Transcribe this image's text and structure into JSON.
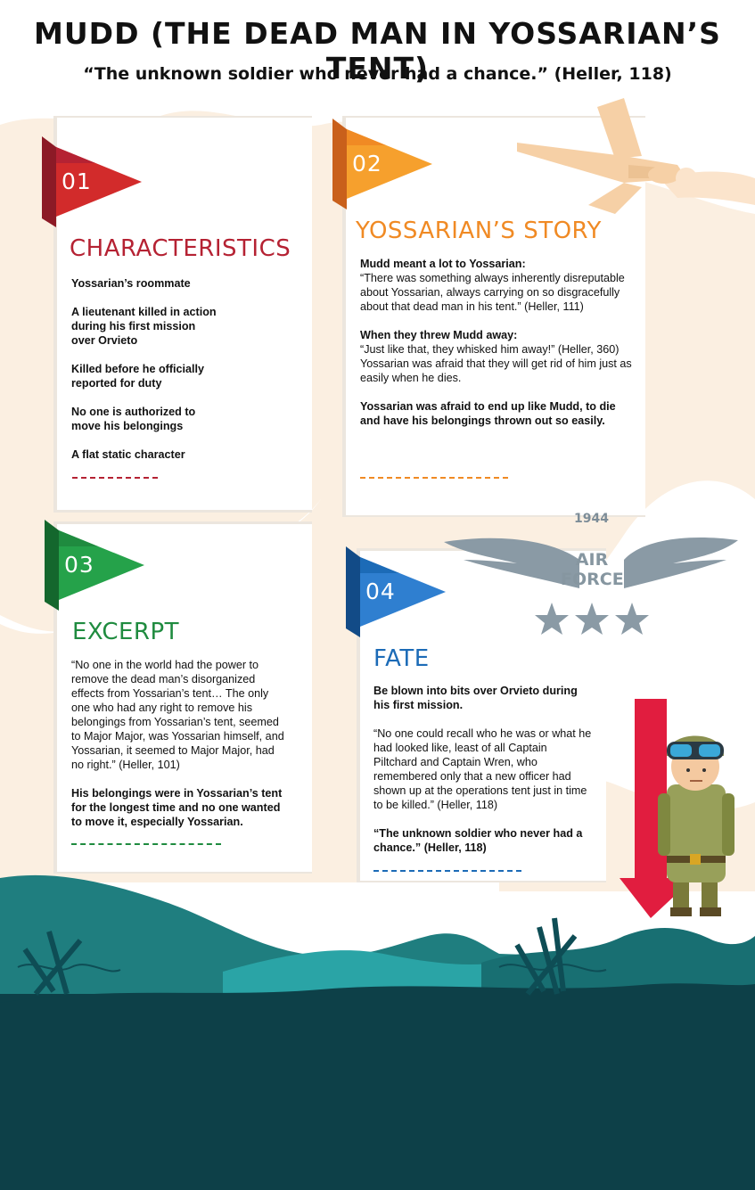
{
  "title": "MUDD (THE DEAD MAN IN YOSSARIAN’S TENT)",
  "subtitle": "“The unknown soldier who never had a chance.” (Heller, 118)",
  "colors": {
    "s1": "#b52233",
    "s2": "#f08a24",
    "s3": "#1f8b3f",
    "s4": "#1c6bb7",
    "cream": "#fbefe1",
    "hills_teal": "#1f7e7f",
    "ground_dark": "#0d4048",
    "arrow_red": "#e11d3f",
    "wing_gray": "#8a9aa5"
  },
  "sections": [
    {
      "number": "01",
      "heading": "CHARACTERISTICS",
      "items": [
        "Yossarian’s roommate",
        "A lieutenant killed in action during his first mission over Orvieto",
        "Killed before he officially reported for duty",
        "No one is authorized to move his belongings",
        "A flat static character"
      ]
    },
    {
      "number": "02",
      "heading": "YOSSARIAN’S STORY",
      "blocks": [
        {
          "bold": "Mudd meant a lot to Yossarian:",
          "text": "“There was something always inherently disreputable about Yossarian, always carrying on so disgracefully about that dead man in his tent.” (Heller, 111)"
        },
        {
          "bold": "When they threw Mudd away:",
          "text": "“Just like that, they whisked him away!” (Heller, 360) Yossarian was afraid that they will get rid of him just as easily when he dies."
        },
        {
          "bold": "Yossarian was afraid to end up like Mudd, to die and have his belongings thrown out so easily.",
          "text": ""
        }
      ]
    },
    {
      "number": "03",
      "heading": "EXCERPT",
      "quote": "“No one in the world had the power to remove the dead man’s disorganized effects from Yossarian’s tent… The only one who had any right to remove his belongings from Yossarian’s tent, seemed to Major Major, was Yossarian himself, and Yossarian, it seemed to Major Major, had no right.” (Heller, 101)",
      "note": "His belongings were in Yossarian’s tent for the longest time and no one wanted to move it, especially Yossarian."
    },
    {
      "number": "04",
      "heading": "FATE",
      "lead": "Be blown into bits over Orvieto during his first mission.",
      "quote": "“No one could recall who he was or what he had looked like, least of all Captain Piltchard and Captain Wren, who remembered only that a new officer had shown up at the operations tent just in time to be killed.” (Heller, 118)",
      "closing": "“The unknown soldier who never had a chance.” (Heller, 118)"
    }
  ],
  "air_force_badge": {
    "year": "1944",
    "line1": "AIR",
    "line2": "FORCE"
  }
}
